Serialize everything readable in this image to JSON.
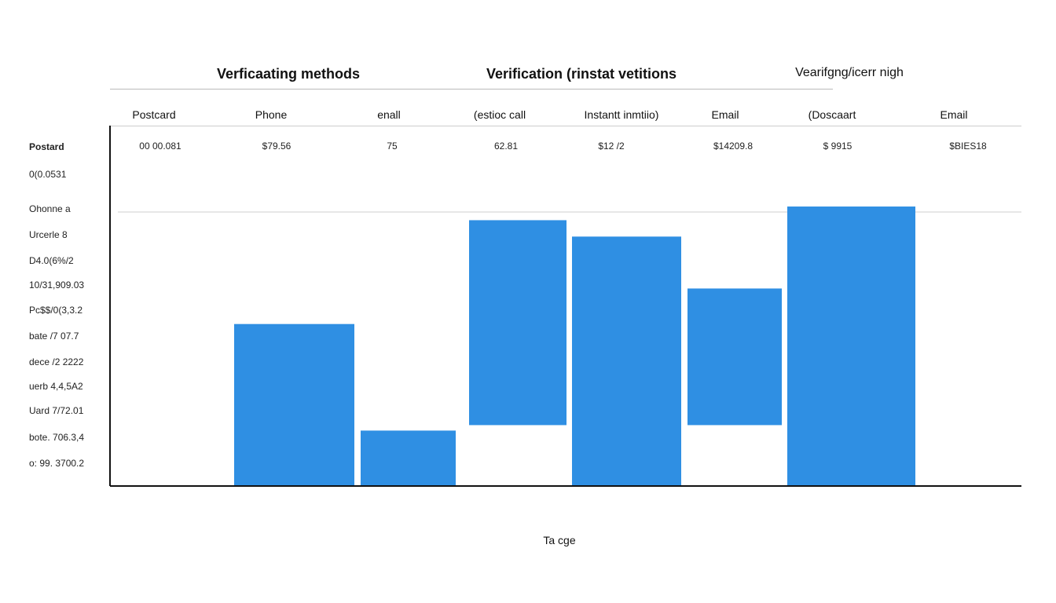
{
  "group_titles": [
    {
      "text": "Verficaating methods",
      "style": "bold"
    },
    {
      "text": "Verification (rinstat vetitions",
      "style": "bold"
    },
    {
      "text": "Vearifgng/icerr nigh",
      "style": "light"
    }
  ],
  "columns": [
    {
      "header": "Postcard",
      "value": "00 00.081"
    },
    {
      "header": "Phone",
      "value": "$79.56"
    },
    {
      "header": "enall",
      "value": "75"
    },
    {
      "header": "(estioc call",
      "value": "62.81"
    },
    {
      "header": "Instantt inmtiio)",
      "value": "$12 /2"
    },
    {
      "header": "Email",
      "value": "$14209.8"
    },
    {
      "header": "(Doscaart",
      "value": "$ 9915"
    },
    {
      "header": "Email",
      "value": "$BIES18"
    }
  ],
  "row_labels": [
    {
      "text": "Postard",
      "style": "bold"
    },
    {
      "text": "0(0.0531",
      "style": "normal"
    },
    {
      "text": "Ohonne a",
      "style": "normal"
    },
    {
      "text": "Urcerle 8",
      "style": "normal"
    },
    {
      "text": "D4.0(6%/2",
      "style": "normal"
    },
    {
      "text": "10/31,909.03",
      "style": "normal"
    },
    {
      "text": "Pc$$/0(3,3.2",
      "style": "normal"
    },
    {
      "text": "bate /7 07.7",
      "style": "normal"
    },
    {
      "text": "dece /2 2222",
      "style": "normal"
    },
    {
      "text": "uerb 4,4,5A2",
      "style": "normal"
    },
    {
      "text": "Uard 7/72.01",
      "style": "normal"
    },
    {
      "text": "bote. 706.3,4",
      "style": "normal"
    },
    {
      "text": "o: 99. 3700.2",
      "style": "normal"
    }
  ],
  "chart_data": {
    "type": "bar",
    "xlabel": "Ta cge",
    "ylabel": "",
    "ylim": [
      0,
      100
    ],
    "grid": "single horizontal reference line",
    "bar_color": "#2f8fe3",
    "bars": [
      {
        "start": 0,
        "end": 59
      },
      {
        "start": 0,
        "end": 20
      },
      {
        "start": 22,
        "end": 97
      },
      {
        "start": 0,
        "end": 91
      },
      {
        "start": 22,
        "end": 72
      },
      {
        "start": 0,
        "end": 102
      }
    ]
  }
}
